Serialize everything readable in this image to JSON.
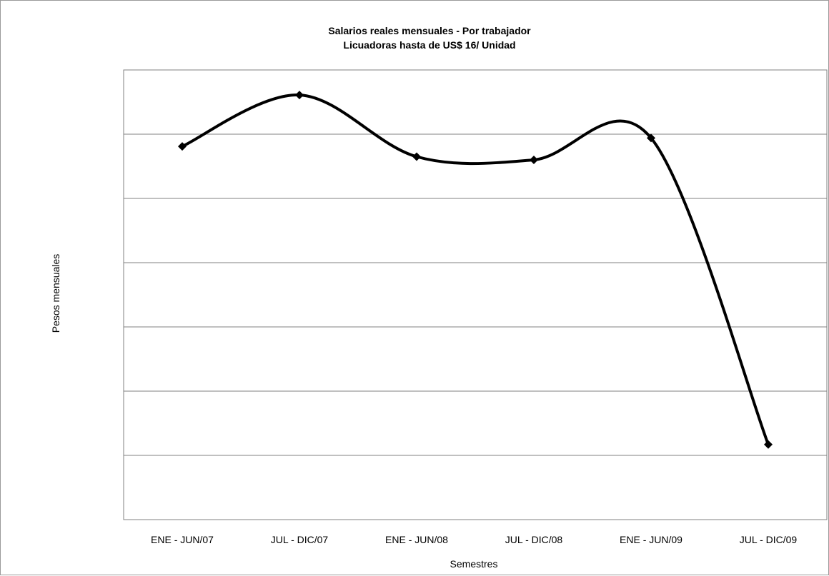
{
  "chart_data": {
    "type": "line",
    "title": [
      "Salarios reales mensuales - Por trabajador",
      "Licuadoras hasta de US$ 16/ Unidad"
    ],
    "xlabel": "Semestres",
    "ylabel": "Pesos mensuales",
    "categories": [
      "ENE - JUN/07",
      "JUL - DIC/07",
      "ENE - JUN/08",
      "JUL - DIC/08",
      "ENE - JUN/09",
      "JUL - DIC/09"
    ],
    "series": [
      {
        "values": [
          5.81,
          6.61,
          5.65,
          5.6,
          5.94,
          1.17
        ]
      }
    ],
    "ylim": [
      0,
      7
    ],
    "y_gridlines": [
      1,
      2,
      3,
      4,
      5,
      6
    ],
    "y_tick_labels_shown": false,
    "smoothed": true,
    "marker": "diamond",
    "grid": true,
    "legend": "none",
    "colors": {
      "line": "#000000",
      "grid": "#808080"
    }
  }
}
